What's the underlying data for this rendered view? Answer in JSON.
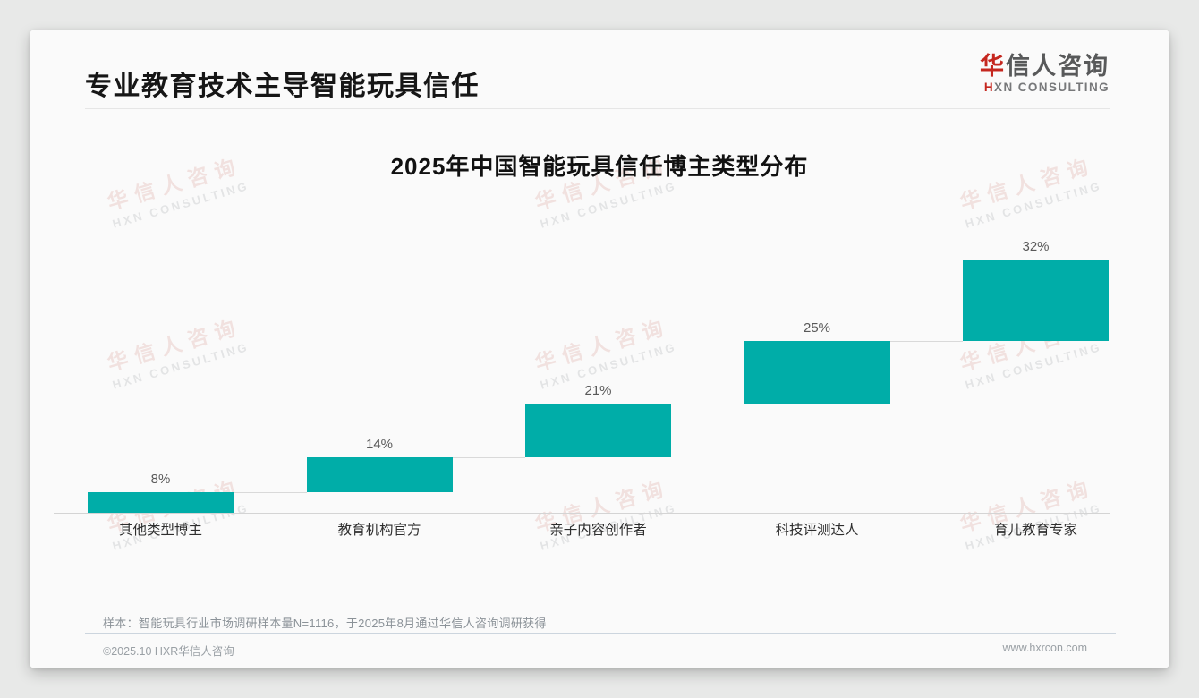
{
  "header": {
    "title": "专业教育技术主导智能玩具信任",
    "logo": {
      "zh_accent": "华",
      "zh_rest": "信人咨询",
      "en": "HXN CONSULTING",
      "accent_color": "#c5271f"
    }
  },
  "watermark": {
    "zh": "华信人咨询",
    "en": "HXN CONSULTING"
  },
  "chart_data": {
    "type": "bar",
    "subtype": "waterfall",
    "title": "2025年中国智能玩具信任博主类型分布",
    "categories": [
      "其他类型博主",
      "教育机构官方",
      "亲子内容创作者",
      "科技评测达人",
      "育儿教育专家"
    ],
    "values": [
      8,
      14,
      21,
      25,
      32
    ],
    "data_labels": [
      "8%",
      "14%",
      "21%",
      "25%",
      "32%"
    ],
    "cumulative": [
      8,
      22,
      43,
      68,
      100
    ],
    "unit": "%",
    "ylim": [
      0,
      100
    ],
    "bar_color": "#00ADA8",
    "connector_color": "#d9d9d9",
    "axis_color": "#d4d4d4",
    "gridlines": false,
    "legend": false
  },
  "footer": {
    "note": "样本：智能玩具行业市场调研样本量N=1116，于2025年8月通过华信人咨询调研获得",
    "copyright": "©2025.10 HXR华信人咨询",
    "website": "www.hxrcon.com"
  }
}
